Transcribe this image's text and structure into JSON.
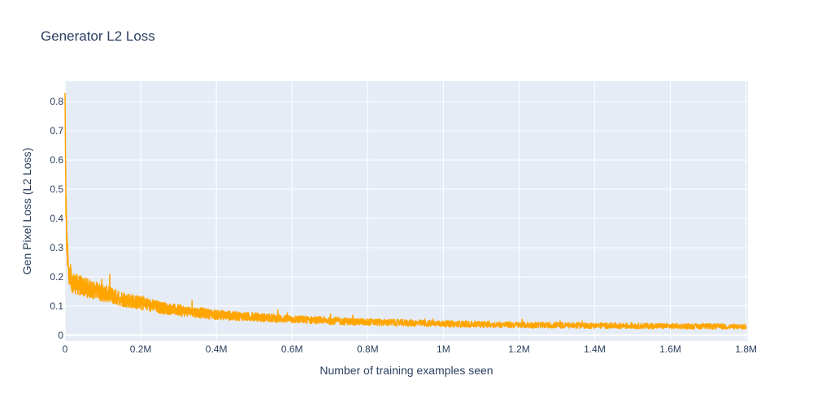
{
  "chart_data": {
    "type": "line",
    "title": "Generator L2 Loss",
    "xlabel": "Number of training examples seen",
    "ylabel": "Gen Pixel Loss (L2 Loss)",
    "xlim": [
      0,
      1805000
    ],
    "ylim": [
      -0.02,
      0.87
    ],
    "x_ticks": [
      0,
      200000,
      400000,
      600000,
      800000,
      1000000,
      1200000,
      1400000,
      1600000,
      1800000
    ],
    "x_tick_labels": [
      "0",
      "0.2M",
      "0.4M",
      "0.6M",
      "0.8M",
      "1M",
      "1.2M",
      "1.4M",
      "1.6M",
      "1.8M"
    ],
    "y_ticks": [
      0,
      0.1,
      0.2,
      0.3,
      0.4,
      0.5,
      0.6,
      0.7,
      0.8
    ],
    "y_tick_labels": [
      "0",
      "0.1",
      "0.2",
      "0.3",
      "0.4",
      "0.5",
      "0.6",
      "0.7",
      "0.8"
    ],
    "grid": true,
    "colors": {
      "line": "#ffa500",
      "plot_bg": "#e5ecf6",
      "grid": "#ffffff",
      "text": "#2a3f5f"
    },
    "series": [
      {
        "x": [
          0,
          2000,
          5000,
          10000,
          20000,
          30000,
          50000,
          75000,
          100000,
          125000,
          150000,
          200000,
          250000,
          300000,
          350000,
          400000,
          450000,
          500000,
          550000,
          600000,
          650000,
          700000,
          750000,
          800000,
          900000,
          1000000,
          1100000,
          1200000,
          1300000,
          1400000,
          1500000,
          1600000,
          1700000,
          1800000
        ],
        "y": [
          0.83,
          0.48,
          0.3,
          0.2,
          0.18,
          0.175,
          0.165,
          0.155,
          0.145,
          0.135,
          0.125,
          0.11,
          0.095,
          0.085,
          0.078,
          0.07,
          0.066,
          0.062,
          0.058,
          0.055,
          0.052,
          0.05,
          0.047,
          0.045,
          0.042,
          0.039,
          0.037,
          0.035,
          0.034,
          0.033,
          0.032,
          0.031,
          0.03,
          0.029
        ]
      }
    ]
  }
}
